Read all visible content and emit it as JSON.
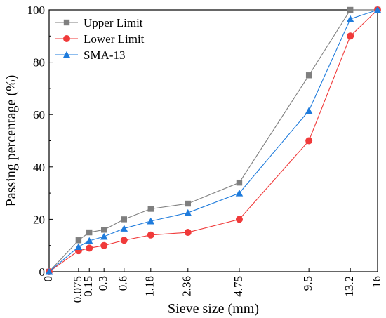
{
  "chart_data": {
    "type": "line",
    "xlabel": "Sieve size (mm)",
    "ylabel": "Passing percentage (%)",
    "x_scale": "power-0.45",
    "x_ticks": [
      "0",
      "0.075",
      "0.15",
      "0.3",
      "0.6",
      "1.18",
      "2.36",
      "4.75",
      "9.5",
      "13.2",
      "16"
    ],
    "x": [
      0,
      0.075,
      0.15,
      0.3,
      0.6,
      1.18,
      2.36,
      4.75,
      9.5,
      13.2,
      16
    ],
    "xlim": [
      0,
      16
    ],
    "ylim": [
      0,
      100
    ],
    "y_ticks": [
      0,
      20,
      40,
      60,
      80,
      100
    ],
    "grid": false,
    "legend_position": "top-left",
    "series": [
      {
        "name": "Upper Limit",
        "color": "#7f7f7f",
        "marker": "square",
        "values": [
          0,
          12,
          15,
          16,
          20,
          24,
          26,
          34,
          75,
          100,
          100
        ]
      },
      {
        "name": "Lower Limit",
        "color": "#f03a3a",
        "marker": "circle",
        "values": [
          0,
          8,
          9,
          10,
          12,
          14,
          15,
          20,
          50,
          90,
          100
        ]
      },
      {
        "name": "SMA-13",
        "color": "#1e7bdc",
        "marker": "triangle",
        "values": [
          0,
          9.5,
          11.8,
          13.4,
          16.5,
          19.3,
          22.5,
          30,
          61.5,
          96.5,
          100
        ]
      }
    ]
  }
}
